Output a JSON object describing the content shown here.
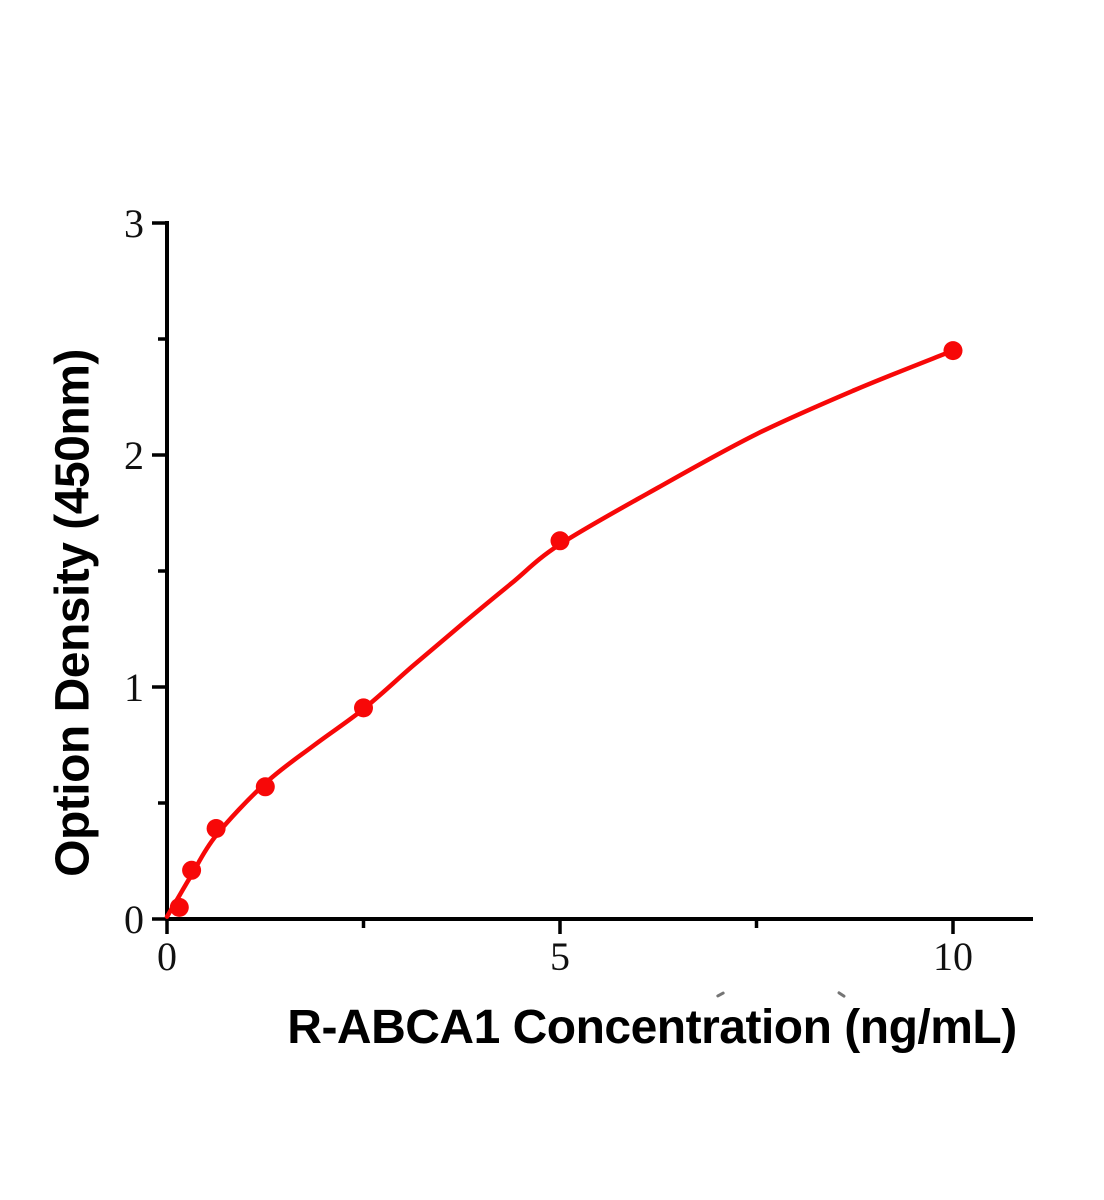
{
  "chart_data": {
    "type": "scatter",
    "title": "",
    "xlabel": "R-ABCA1 Concentration (ng/mL)",
    "ylabel": "Option Density (450nm)",
    "xlim": [
      0,
      11
    ],
    "ylim": [
      0,
      3
    ],
    "grid": false,
    "legend_position": "none",
    "x_major_ticks": [
      0,
      5,
      10
    ],
    "x_minor_ticks": [
      2.5,
      7.5
    ],
    "y_major_ticks": [
      0,
      1,
      2,
      3
    ],
    "y_minor_ticks": [
      0.5,
      1.5,
      2.5
    ],
    "points": [
      {
        "x": 0.156,
        "y": 0.05
      },
      {
        "x": 0.3125,
        "y": 0.21
      },
      {
        "x": 0.625,
        "y": 0.39
      },
      {
        "x": 1.25,
        "y": 0.57
      },
      {
        "x": 2.5,
        "y": 0.91
      },
      {
        "x": 5,
        "y": 1.63
      },
      {
        "x": 10,
        "y": 2.45
      }
    ],
    "fit_curve": [
      {
        "x": 0,
        "y": 0.01
      },
      {
        "x": 0.156,
        "y": 0.1
      },
      {
        "x": 0.3125,
        "y": 0.19
      },
      {
        "x": 0.625,
        "y": 0.36
      },
      {
        "x": 1.25,
        "y": 0.585
      },
      {
        "x": 1.875,
        "y": 0.75
      },
      {
        "x": 2.5,
        "y": 0.905
      },
      {
        "x": 3.125,
        "y": 1.09
      },
      {
        "x": 3.75,
        "y": 1.27
      },
      {
        "x": 4.375,
        "y": 1.445
      },
      {
        "x": 5,
        "y": 1.615
      },
      {
        "x": 6.25,
        "y": 1.86
      },
      {
        "x": 7.5,
        "y": 2.09
      },
      {
        "x": 8.75,
        "y": 2.28
      },
      {
        "x": 10,
        "y": 2.45
      }
    ],
    "series_color": "#f70808",
    "axis_color": "#000000",
    "tick_label_color": "#111111"
  }
}
